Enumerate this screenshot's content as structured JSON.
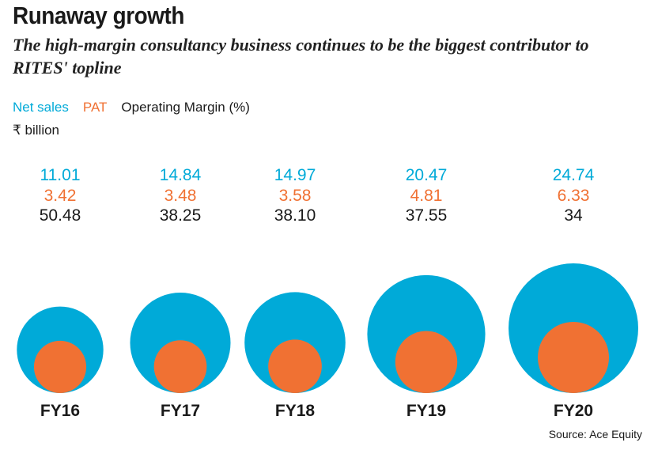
{
  "header": {
    "title": "Runaway growth",
    "subtitle": "The high-margin consultancy business continues to be the biggest contributor to RITES' topline"
  },
  "legend": {
    "net_sales": "Net sales",
    "pat": "PAT",
    "operating_margin": "Operating Margin (%)"
  },
  "unit": "₹ billion",
  "source": "Source: Ace Equity",
  "colors": {
    "net_sales": "#00aad8",
    "pat": "#f07133",
    "operating_margin": "#1a1a1a"
  },
  "chart_data": {
    "type": "bubble",
    "categories": [
      "FY16",
      "FY17",
      "FY18",
      "FY19",
      "FY20"
    ],
    "series": [
      {
        "name": "Net sales",
        "values": [
          11.01,
          14.84,
          14.97,
          20.47,
          24.74
        ]
      },
      {
        "name": "PAT",
        "values": [
          3.42,
          3.48,
          3.58,
          4.81,
          6.33
        ]
      },
      {
        "name": "Operating Margin (%)",
        "values": [
          50.48,
          38.25,
          38.1,
          37.55,
          34
        ]
      }
    ],
    "value_labels": {
      "net_sales": [
        "11.01",
        "14.84",
        "14.97",
        "20.47",
        "24.74"
      ],
      "pat": [
        "3.42",
        "3.48",
        "3.58",
        "4.81",
        "6.33"
      ],
      "operating_margin": [
        "50.48",
        "38.25",
        "38.10",
        "37.55",
        "34"
      ]
    }
  }
}
